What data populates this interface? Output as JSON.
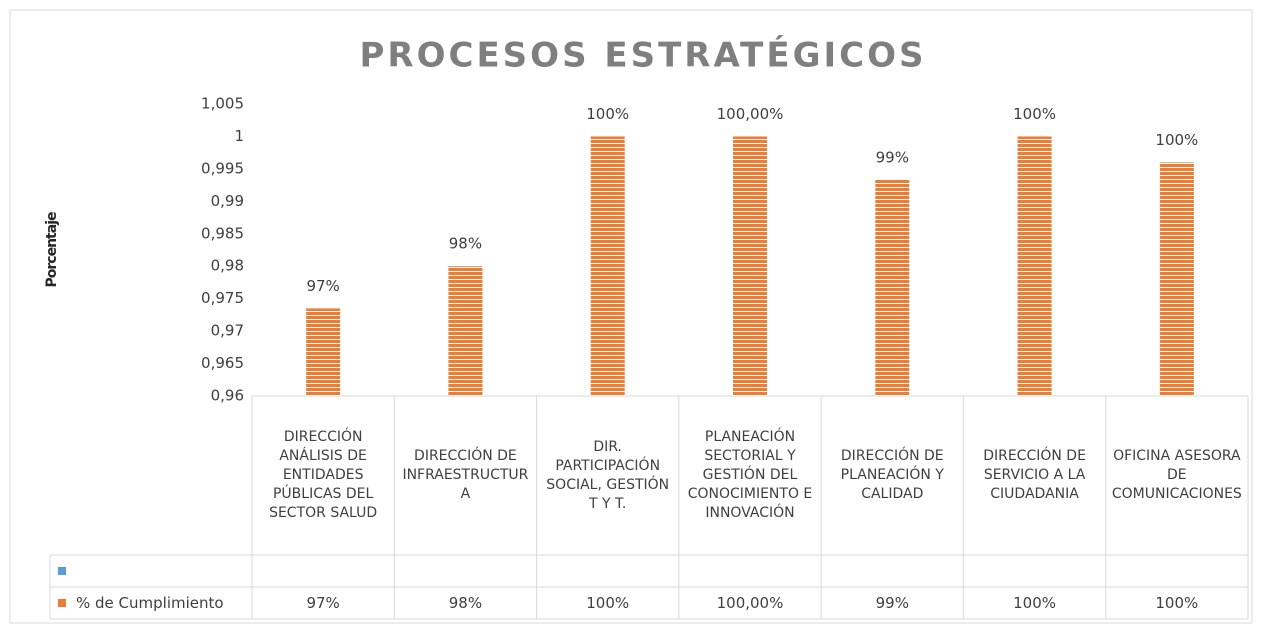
{
  "chart_data": {
    "type": "bar",
    "title": "PROCESOS ESTRATÉGICOS",
    "y_label": "Porcentaje",
    "categories": [
      "DIRECCIÓN ANÁLISIS DE ENTIDADES PÚBLICAS DEL SECTOR SALUD",
      "DIRECCIÓN DE INFRAESTRUCTURA",
      "DIR. PARTICIPACIÓN SOCIAL, GESTIÓN T Y T.",
      "PLANEACIÓN SECTORIAL Y GESTIÓN DEL CONOCIMIENTO E INNOVACIÓN",
      "DIRECCIÓN DE PLANEACIÓN Y CALIDAD",
      "DIRECCIÓN DE SERVICIO A LA CIUDADANIA",
      "OFICINA ASESORA DE COMUNICACIONES"
    ],
    "series": [
      {
        "color": "#5b9bd5",
        "values": [
          null,
          null,
          null,
          null,
          null,
          null,
          null
        ]
      },
      {
        "name": "% de Cumplimiento",
        "color": "#ed7d31",
        "values": [
          0.9735,
          0.98,
          1,
          1,
          0.9933,
          1,
          0.996
        ],
        "value_labels": [
          "97%",
          "98%",
          "100%",
          "100,00%",
          "99%",
          "100%",
          "100%"
        ]
      }
    ],
    "ylim": [
      0.96,
      1.005
    ],
    "yticks": [
      {
        "value": 0.96,
        "label": "0,96"
      },
      {
        "value": 0.965,
        "label": "0,965"
      },
      {
        "value": 0.97,
        "label": "0,97"
      },
      {
        "value": 0.975,
        "label": "0,975"
      },
      {
        "value": 0.98,
        "label": "0,98"
      },
      {
        "value": 0.985,
        "label": "0,985"
      },
      {
        "value": 0.99,
        "label": "0,99"
      },
      {
        "value": 0.995,
        "label": "0,995"
      },
      1,
      {
        "value": 1.005,
        "label": "1,005"
      }
    ],
    "grid": false
  }
}
